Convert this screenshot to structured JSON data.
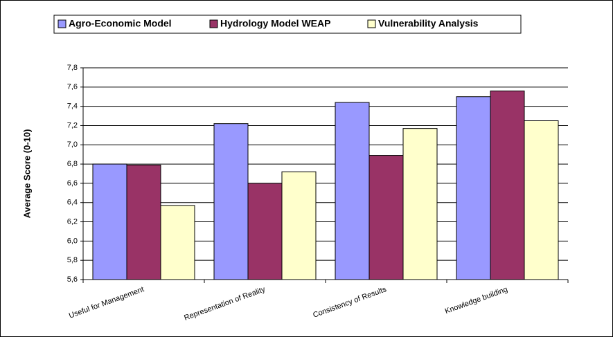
{
  "chart_data": {
    "type": "bar",
    "y_axis_label": "Average Score (0-10)",
    "categories": [
      "Useful for Management",
      "Representation of Reality",
      "Consistency of Results",
      "Knowledge building"
    ],
    "series": [
      {
        "name": "Agro-Economic Model",
        "color": "#9999ff",
        "values": [
          6.8,
          7.22,
          7.44,
          7.5
        ]
      },
      {
        "name": "Hydrology Model WEAP",
        "color": "#993366",
        "values": [
          6.79,
          6.6,
          6.89,
          7.56
        ]
      },
      {
        "name": "Vulnerability Analysis",
        "color": "#ffffcc",
        "values": [
          6.37,
          6.72,
          7.17,
          7.25
        ]
      }
    ],
    "ylim": [
      5.6,
      7.8
    ],
    "yticks": [
      {
        "value": 5.6,
        "label": "5,6"
      },
      {
        "value": 5.8,
        "label": "5,8"
      },
      {
        "value": 6.0,
        "label": "6,0"
      },
      {
        "value": 6.2,
        "label": "6,2"
      },
      {
        "value": 6.4,
        "label": "6,4"
      },
      {
        "value": 6.6,
        "label": "6,6"
      },
      {
        "value": 6.8,
        "label": "6,8"
      },
      {
        "value": 7.0,
        "label": "7,0"
      },
      {
        "value": 7.2,
        "label": "7,2"
      },
      {
        "value": 7.4,
        "label": "7,4"
      },
      {
        "value": 7.6,
        "label": "7,6"
      },
      {
        "value": 7.8,
        "label": "7,8"
      }
    ],
    "grid": true,
    "legend": "top"
  }
}
